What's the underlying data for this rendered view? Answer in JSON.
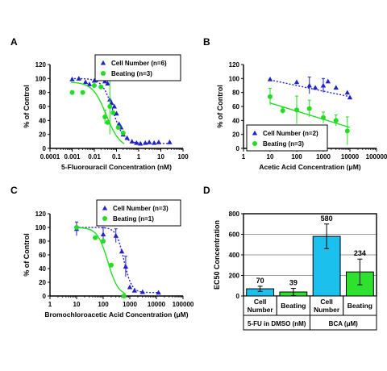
{
  "chart_data": [
    {
      "panel": "A",
      "type": "scatter",
      "x_scale": "log",
      "xlabel": "5-Fluorouracil Concentration (nM)",
      "ylabel": "% of Control",
      "xlim": [
        0.0001,
        100
      ],
      "ylim": [
        0,
        120
      ],
      "xticks": [
        "0.0001",
        "0.001",
        "0.01",
        "0.1",
        "1",
        "10",
        "100"
      ],
      "yticks": [
        "0",
        "20",
        "40",
        "60",
        "80",
        "100",
        "120"
      ],
      "legend_placement": "top-right",
      "series": [
        {
          "name": "Cell Number (n=6)",
          "marker": "triangle",
          "color": "#2222cc",
          "fit": "dotted",
          "points": [
            {
              "x": 0.001,
              "y": 99
            },
            {
              "x": 0.002,
              "y": 100
            },
            {
              "x": 0.004,
              "y": 95
            },
            {
              "x": 0.006,
              "y": 92
            },
            {
              "x": 0.01,
              "y": 97
            },
            {
              "x": 0.015,
              "y": 104
            },
            {
              "x": 0.02,
              "y": 102
            },
            {
              "x": 0.03,
              "y": 96
            },
            {
              "x": 0.04,
              "y": 93
            },
            {
              "x": 0.05,
              "y": 70
            },
            {
              "x": 0.06,
              "y": 65
            },
            {
              "x": 0.08,
              "y": 60
            },
            {
              "x": 0.1,
              "y": 50
            },
            {
              "x": 0.13,
              "y": 35
            },
            {
              "x": 0.16,
              "y": 30
            },
            {
              "x": 0.2,
              "y": 20
            },
            {
              "x": 0.3,
              "y": 15
            },
            {
              "x": 0.5,
              "y": 10
            },
            {
              "x": 0.8,
              "y": 8
            },
            {
              "x": 1.2,
              "y": 7
            },
            {
              "x": 2,
              "y": 8
            },
            {
              "x": 3,
              "y": 9
            },
            {
              "x": 5,
              "y": 8
            },
            {
              "x": 8,
              "y": 9
            },
            {
              "x": 25,
              "y": 9
            }
          ],
          "fit_curve": {
            "top": 100,
            "bottom": 7,
            "ec50": 0.07,
            "hill": 1.8
          }
        },
        {
          "name": "Beating (n=3)",
          "marker": "circle",
          "color": "#22dd22",
          "fit": "solid",
          "points": [
            {
              "x": 0.001,
              "y": 80
            },
            {
              "x": 0.003,
              "y": 80
            },
            {
              "x": 0.01,
              "y": 90
            },
            {
              "x": 0.02,
              "y": 88
            },
            {
              "x": 0.03,
              "y": 45,
              "err": 10
            },
            {
              "x": 0.04,
              "y": 37
            },
            {
              "x": 0.05,
              "y": 60,
              "err": 40
            },
            {
              "x": 0.07,
              "y": 51
            },
            {
              "x": 0.12,
              "y": 30
            },
            {
              "x": 0.2,
              "y": 22
            }
          ],
          "fit_curve": {
            "top": 95,
            "bottom": 0,
            "ec50": 0.035,
            "hill": 1.4
          }
        }
      ]
    },
    {
      "panel": "B",
      "type": "scatter",
      "x_scale": "log",
      "xlabel": "Acetic Acid Concentration (μM)",
      "ylabel": "% of Control",
      "xlim": [
        1,
        100000
      ],
      "ylim": [
        0,
        120
      ],
      "xticks": [
        "1",
        "10",
        "100",
        "1000",
        "10000",
        "100000"
      ],
      "yticks": [
        "0",
        "20",
        "40",
        "60",
        "80",
        "100",
        "120"
      ],
      "legend_placement": "bottom-left",
      "series": [
        {
          "name": "Cell Number (n=2)",
          "marker": "triangle",
          "color": "#2222cc",
          "fit": "dotted",
          "points": [
            {
              "x": 10,
              "y": 99
            },
            {
              "x": 100,
              "y": 95
            },
            {
              "x": 300,
              "y": 90,
              "err": 12
            },
            {
              "x": 500,
              "y": 87
            },
            {
              "x": 1000,
              "y": 90,
              "err": 10
            },
            {
              "x": 1500,
              "y": 96
            },
            {
              "x": 3000,
              "y": 87
            },
            {
              "x": 8000,
              "y": 80
            },
            {
              "x": 10000,
              "y": 73
            }
          ],
          "fit_curve": {
            "from": 10,
            "to": 10000,
            "y_from": 98,
            "y_to": 74
          }
        },
        {
          "name": "Beating (n=3)",
          "marker": "circle",
          "color": "#22dd22",
          "fit": "solid",
          "points": [
            {
              "x": 10,
              "y": 74,
              "err": 12
            },
            {
              "x": 30,
              "y": 54,
              "err": 4
            },
            {
              "x": 100,
              "y": 55,
              "err": 20
            },
            {
              "x": 300,
              "y": 57,
              "err": 12
            },
            {
              "x": 1000,
              "y": 44,
              "err": 8
            },
            {
              "x": 3000,
              "y": 40,
              "err": 8
            },
            {
              "x": 8000,
              "y": 25,
              "err": 20
            }
          ],
          "fit_curve": {
            "from": 10,
            "to": 10000,
            "y_from": 65,
            "y_to": 30
          }
        }
      ]
    },
    {
      "panel": "C",
      "type": "scatter",
      "x_scale": "log",
      "xlabel": "Bromochloroacetic Acid Concentration (μM)",
      "ylabel": "% of Control",
      "xlim": [
        1,
        100000
      ],
      "ylim": [
        0,
        120
      ],
      "xticks": [
        "1",
        "10",
        "100",
        "1000",
        "10000",
        "100000"
      ],
      "yticks": [
        "0",
        "20",
        "40",
        "60",
        "80",
        "100",
        "120"
      ],
      "legend_placement": "top-right",
      "series": [
        {
          "name": "Cell Number (n=3)",
          "marker": "triangle",
          "color": "#2222cc",
          "fit": "dotted",
          "points": [
            {
              "x": 10,
              "y": 98,
              "err": 10
            },
            {
              "x": 100,
              "y": 90,
              "err": 10
            },
            {
              "x": 300,
              "y": 88,
              "err": 10
            },
            {
              "x": 500,
              "y": 65
            },
            {
              "x": 700,
              "y": 43,
              "err": 15
            },
            {
              "x": 1000,
              "y": 13
            },
            {
              "x": 1500,
              "y": 8
            },
            {
              "x": 3000,
              "y": 6
            },
            {
              "x": 12000,
              "y": 5
            }
          ],
          "fit_curve": {
            "top": 100,
            "bottom": 5,
            "ec50": 600,
            "hill": 3.0
          }
        },
        {
          "name": "Beating (n=1)",
          "marker": "circle",
          "color": "#22dd22",
          "fit": "solid",
          "points": [
            {
              "x": 10,
              "y": 100
            },
            {
              "x": 50,
              "y": 85
            },
            {
              "x": 100,
              "y": 80
            },
            {
              "x": 200,
              "y": 45
            },
            {
              "x": 600,
              "y": 0
            }
          ],
          "fit_curve": {
            "top": 100,
            "bottom": 0,
            "ec50": 150,
            "hill": 2.2
          }
        }
      ]
    },
    {
      "panel": "D",
      "type": "bar",
      "ylabel": "EC50 Concentration",
      "ylim": [
        0,
        800
      ],
      "yticks": [
        "0",
        "200",
        "400",
        "600",
        "800"
      ],
      "grid": true,
      "categories": [
        "Cell Number",
        "Beating",
        "Cell Number",
        "Beating"
      ],
      "groups": [
        {
          "label": "5-FU in DMSO (nM)",
          "categories": [
            "Cell Number",
            "Beating"
          ]
        },
        {
          "label": "BCA (μM)",
          "categories": [
            "Cell Number",
            "Beating"
          ]
        }
      ],
      "values": [
        70,
        39,
        580,
        234
      ],
      "value_labels": [
        "70",
        "39",
        "580",
        "234"
      ],
      "errors": [
        25,
        35,
        120,
        125
      ],
      "colors": [
        "#1cc0ec",
        "#2ee12e",
        "#1cc0ec",
        "#2ee12e"
      ]
    }
  ],
  "panel_letters": [
    "A",
    "B",
    "C",
    "D"
  ]
}
